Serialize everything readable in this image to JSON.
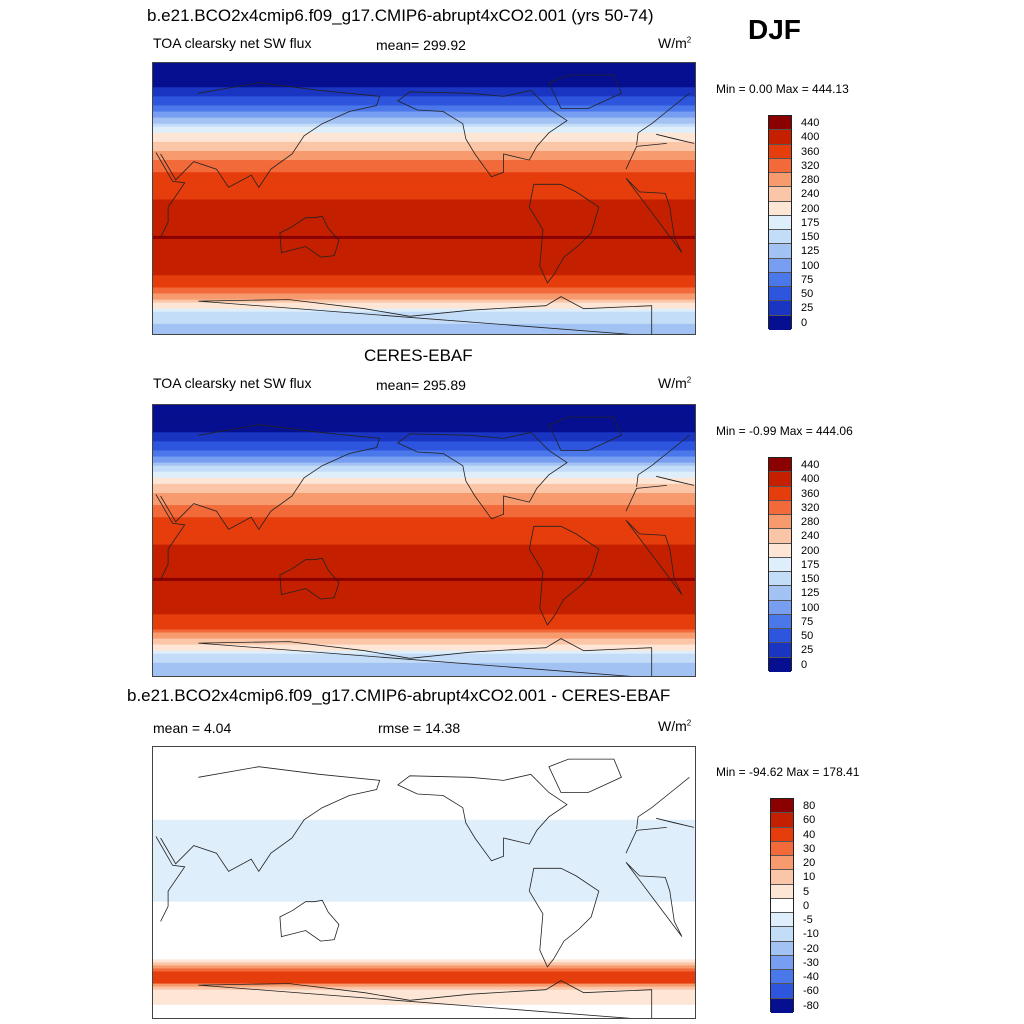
{
  "season": "DJF",
  "chart_data": [
    {
      "type": "heatmap",
      "title": "b.e21.BCO2x4cmip6.f09_g17.CMIP6-abrupt4xCO2.001 (yrs 50-74)",
      "left_label": "TOA clearsky net SW flux",
      "center_label": "mean= 299.92",
      "units": "W/m",
      "units_sup": "2",
      "minmax": "Min =   0.00 Max = 444.13",
      "levels": [
        "440",
        "400",
        "360",
        "320",
        "280",
        "240",
        "200",
        "175",
        "150",
        "125",
        "100",
        "75",
        "50",
        "25",
        "0"
      ],
      "colors": [
        "#8b0000",
        "#c42000",
        "#e63d0c",
        "#f26a3a",
        "#f79a6e",
        "#fbc6a7",
        "#fde6d6",
        "#dfeefb",
        "#c3dcf8",
        "#a2c2f3",
        "#779ef0",
        "#4a78ea",
        "#2d55dd",
        "#1a35c2",
        "#060f8f"
      ],
      "values_by_latitude": [
        {
          "lat": 90,
          "value": 0
        },
        {
          "lat": 75,
          "value": 20
        },
        {
          "lat": 60,
          "value": 80
        },
        {
          "lat": 45,
          "value": 190
        },
        {
          "lat": 30,
          "value": 300
        },
        {
          "lat": 15,
          "value": 370
        },
        {
          "lat": 0,
          "value": 400
        },
        {
          "lat": -15,
          "value": 425
        },
        {
          "lat": -25,
          "value": 440
        },
        {
          "lat": -40,
          "value": 420
        },
        {
          "lat": -55,
          "value": 390
        },
        {
          "lat": -65,
          "value": 280
        },
        {
          "lat": -75,
          "value": 165
        },
        {
          "lat": -90,
          "value": 130
        }
      ]
    },
    {
      "type": "heatmap",
      "title": "CERES-EBAF",
      "left_label": "TOA clearsky net SW flux",
      "center_label": "mean= 295.89",
      "units": "W/m",
      "units_sup": "2",
      "minmax": "Min =  -0.99 Max = 444.06",
      "levels": [
        "440",
        "400",
        "360",
        "320",
        "280",
        "240",
        "200",
        "175",
        "150",
        "125",
        "100",
        "75",
        "50",
        "25",
        "0"
      ],
      "colors": [
        "#8b0000",
        "#c42000",
        "#e63d0c",
        "#f26a3a",
        "#f79a6e",
        "#fbc6a7",
        "#fde6d6",
        "#dfeefb",
        "#c3dcf8",
        "#a2c2f3",
        "#779ef0",
        "#4a78ea",
        "#2d55dd",
        "#1a35c2",
        "#060f8f"
      ],
      "values_by_latitude": [
        {
          "lat": 90,
          "value": 0
        },
        {
          "lat": 75,
          "value": 15
        },
        {
          "lat": 60,
          "value": 70
        },
        {
          "lat": 45,
          "value": 185
        },
        {
          "lat": 30,
          "value": 295
        },
        {
          "lat": 15,
          "value": 365
        },
        {
          "lat": 0,
          "value": 395
        },
        {
          "lat": -15,
          "value": 420
        },
        {
          "lat": -25,
          "value": 440
        },
        {
          "lat": -40,
          "value": 415
        },
        {
          "lat": -55,
          "value": 385
        },
        {
          "lat": -65,
          "value": 270
        },
        {
          "lat": -75,
          "value": 160
        },
        {
          "lat": -90,
          "value": 125
        }
      ]
    },
    {
      "type": "heatmap",
      "title": "b.e21.BCO2x4cmip6.f09_g17.CMIP6-abrupt4xCO2.001 - CERES-EBAF",
      "left_label": "mean =   4.04",
      "center_label": "rmse =  14.38",
      "units": "W/m",
      "units_sup": "2",
      "minmax": "Min = -94.62 Max = 178.41",
      "levels": [
        "80",
        "60",
        "40",
        "30",
        "20",
        "10",
        "5",
        "0",
        "-5",
        "-10",
        "-20",
        "-30",
        "-40",
        "-60",
        "-80"
      ],
      "colors": [
        "#8b0000",
        "#c42000",
        "#e63d0c",
        "#f26a3a",
        "#f79a6e",
        "#fbc6a7",
        "#fde6d6",
        "#ffffff",
        "#dfeefb",
        "#c3dcf8",
        "#a2c2f3",
        "#779ef0",
        "#4a78ea",
        "#2d55dd",
        "#060f8f"
      ],
      "values_by_latitude": [
        {
          "lat": 90,
          "value": 3
        },
        {
          "lat": 60,
          "value": 2
        },
        {
          "lat": 45,
          "value": 1
        },
        {
          "lat": 30,
          "value": -3
        },
        {
          "lat": 0,
          "value": -3
        },
        {
          "lat": -30,
          "value": 4
        },
        {
          "lat": -50,
          "value": 3
        },
        {
          "lat": -62,
          "value": 60
        },
        {
          "lat": -70,
          "value": 8
        },
        {
          "lat": -90,
          "value": 2
        }
      ]
    }
  ]
}
